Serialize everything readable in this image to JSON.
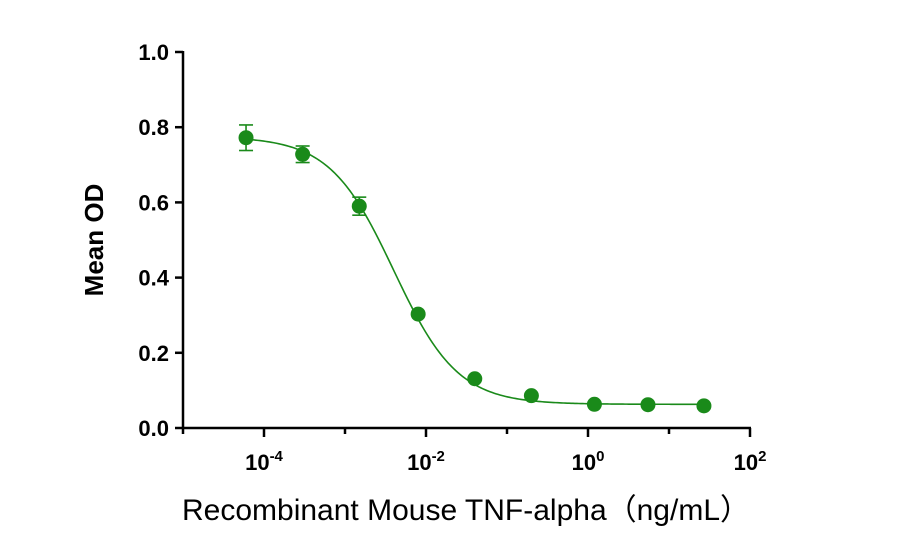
{
  "chart_data": {
    "type": "scatter",
    "xlabel": "Recombinant Mouse TNF-alpha（ng/mL）",
    "ylabel": "Mean OD",
    "x_scale": "log10",
    "xlim": [
      1e-05,
      100
    ],
    "ylim": [
      0,
      1.0
    ],
    "y_ticks": [
      "0.0",
      "0.2",
      "0.4",
      "0.6",
      "0.8",
      "1.0"
    ],
    "x_ticks": [
      {
        "value": 0.0001,
        "base": "10",
        "exp": "-4"
      },
      {
        "value": 0.01,
        "base": "10",
        "exp": "-2"
      },
      {
        "value": 1,
        "base": "10",
        "exp": "0"
      },
      {
        "value": 100,
        "base": "10",
        "exp": "2"
      }
    ],
    "grid": false,
    "color": "#1a8a1a",
    "series": [
      {
        "x": [
          6e-05,
          0.0003,
          0.0015,
          0.008,
          0.04,
          0.2,
          1.2,
          5.5,
          27
        ],
        "y": [
          0.772,
          0.728,
          0.59,
          0.303,
          0.131,
          0.086,
          0.063,
          0.062,
          0.059
        ],
        "err": [
          0.034,
          0.022,
          0.024,
          0,
          0,
          0,
          0,
          0,
          0
        ]
      }
    ],
    "fit_curve": {
      "type": "4PL",
      "top": 0.775,
      "bottom": 0.063,
      "ec50": 0.004,
      "hill": -1.1
    }
  }
}
